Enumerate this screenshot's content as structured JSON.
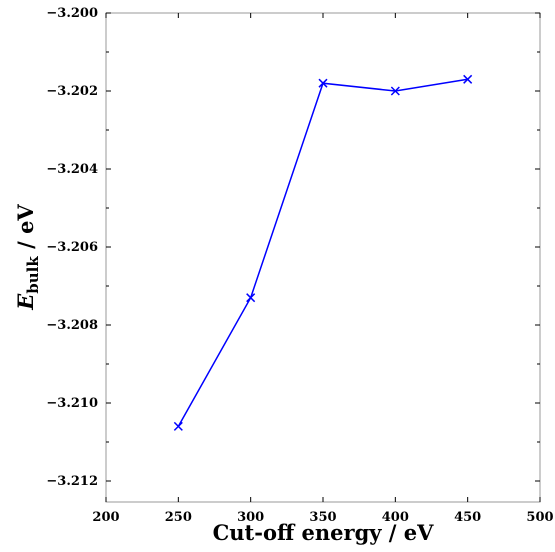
{
  "chart_data": {
    "type": "line",
    "title": "",
    "xlabel": "Cut-off energy / eV",
    "ylabel": {
      "symbol": "E",
      "subscript": "bulk",
      "unit_text": " / eV"
    },
    "xlim": [
      200,
      500
    ],
    "ylim": [
      -3.2125,
      -3.2
    ],
    "x_ticks": [
      200,
      250,
      300,
      350,
      400,
      450,
      500
    ],
    "x_tick_labels": [
      "200",
      "250",
      "300",
      "350",
      "400",
      "450",
      "500"
    ],
    "y_ticks": [
      -3.2,
      -3.202,
      -3.204,
      -3.206,
      -3.208,
      -3.21,
      -3.212
    ],
    "y_tick_labels": [
      "−3.200",
      "−3.202",
      "−3.204",
      "−3.206",
      "−3.208",
      "−3.210",
      "−3.212"
    ],
    "grid": false,
    "legend": false,
    "series": [
      {
        "marker": "x",
        "color": "#0000ff",
        "x": [
          250,
          300,
          350,
          400,
          450
        ],
        "y": [
          -3.2106,
          -3.2073,
          -3.2018,
          -3.202,
          -3.2017
        ]
      }
    ]
  }
}
